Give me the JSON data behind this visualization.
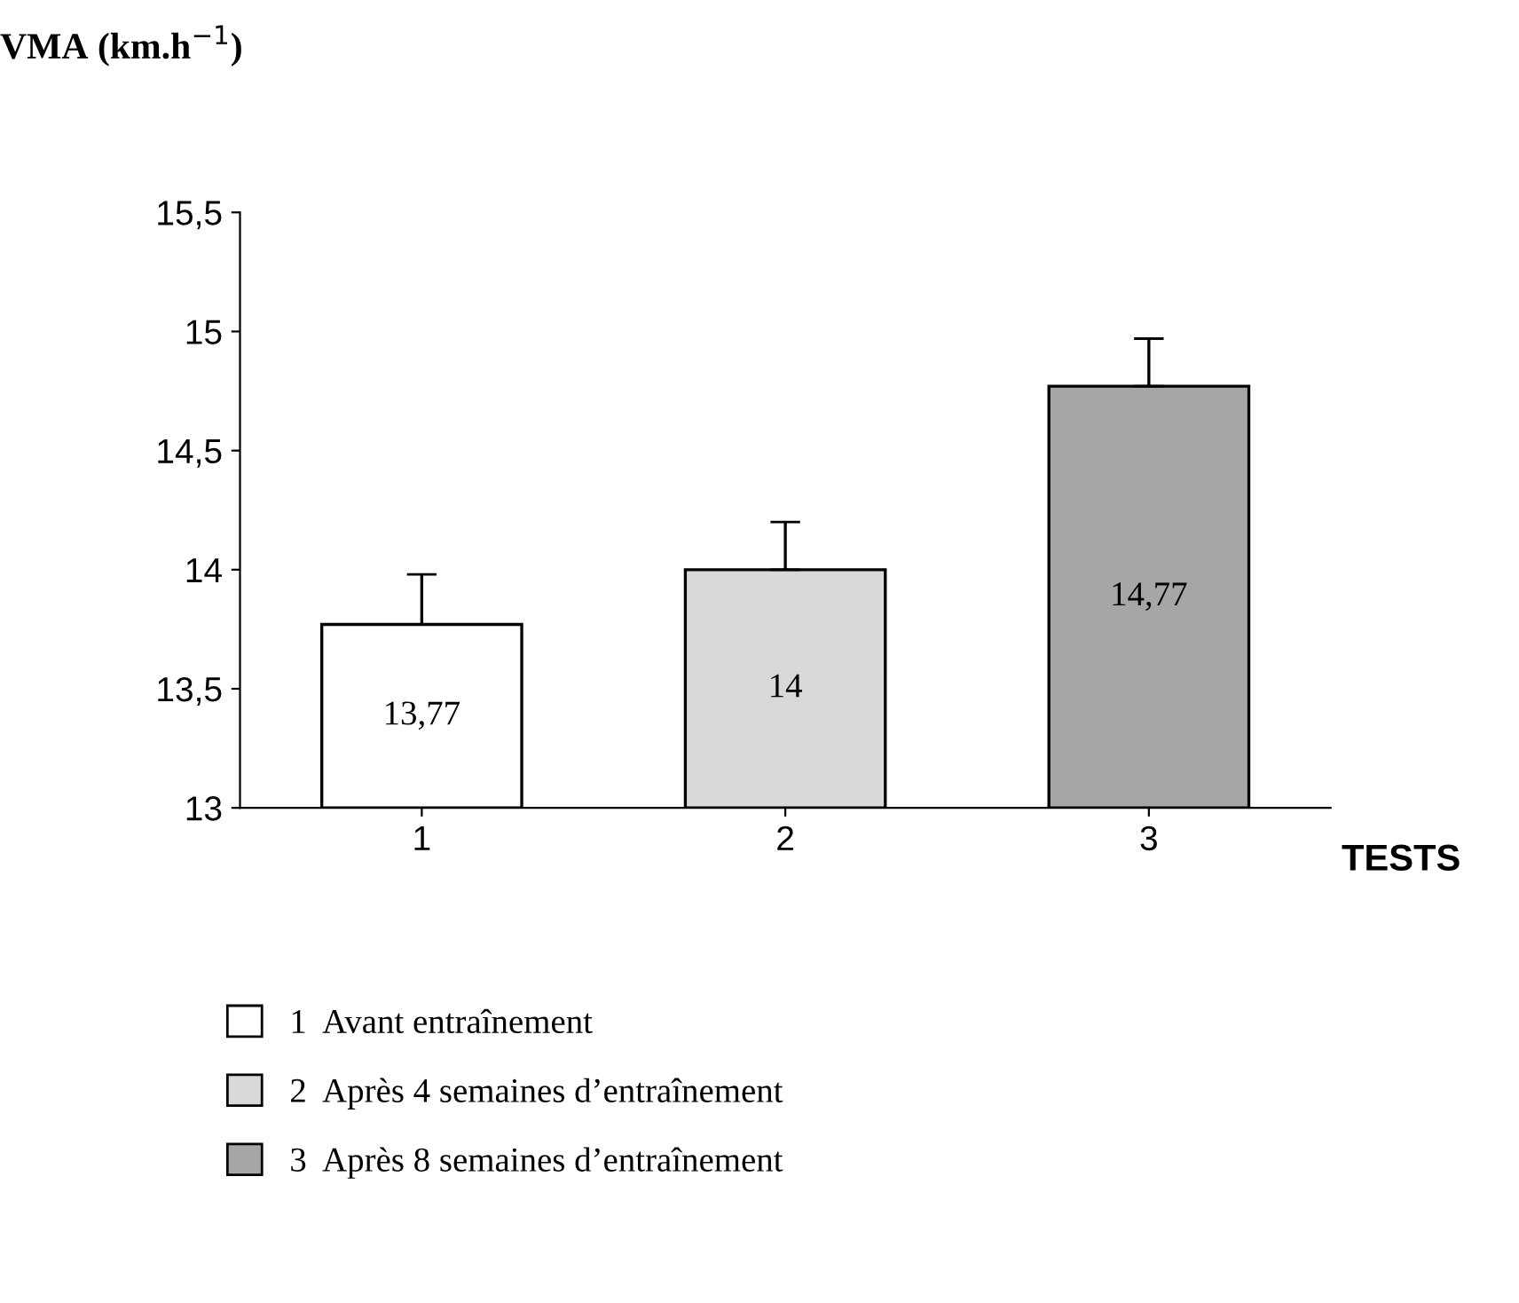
{
  "chart_data": {
    "type": "bar",
    "ylabel": "VMA (km.h$^{−1}$)",
    "xlabel": "TESTS",
    "categories": [
      "1",
      "2",
      "3"
    ],
    "series": [
      {
        "name": "1  Avant entraînement",
        "color": "#ffffff",
        "values": [
          13.77,
          null,
          null
        ],
        "value_labels": [
          "13,77",
          null,
          null
        ],
        "errors": [
          [
            13.77,
            13.98
          ],
          null,
          null
        ]
      },
      {
        "name": "2  Après 4 semaines d’entraînement",
        "color": "#d9d9d9",
        "values": [
          null,
          14,
          null
        ],
        "value_labels": [
          null,
          "14",
          null
        ],
        "errors": [
          null,
          [
            14,
            14.2
          ],
          null
        ]
      },
      {
        "name": "3  Après 8 semaines d’entraînement",
        "color": "#a6a6a6",
        "values": [
          null,
          null,
          14.77
        ],
        "value_labels": [
          null,
          null,
          "14,77"
        ],
        "errors": [
          null,
          null,
          [
            14.77,
            14.97
          ]
        ]
      }
    ],
    "ylim": [
      13,
      15.5
    ],
    "yticks": [
      13,
      {
        "value": 13.5,
        "label": "13,5"
      },
      14,
      {
        "value": 14.5,
        "label": "14,5"
      },
      15,
      {
        "value": 15.5,
        "label": "15,5"
      }
    ],
    "grid": false,
    "legend": "bottom"
  }
}
